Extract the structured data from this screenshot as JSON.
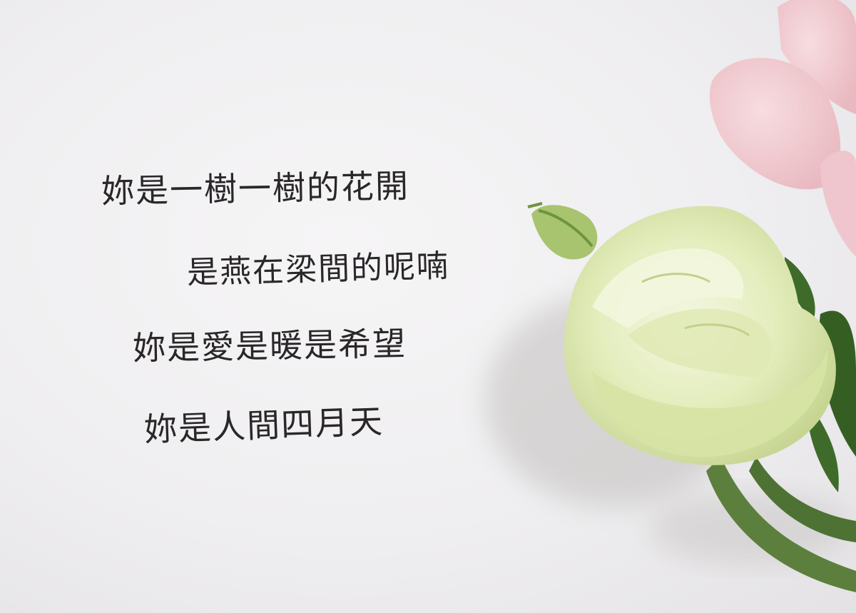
{
  "poem": {
    "lines": [
      "妳是一樹一樹的花開",
      "是燕在梁間的呢喃",
      "妳是愛是暖是希望",
      "妳是人間四月天"
    ]
  },
  "colors": {
    "paper": "#efedee",
    "ink": "#2a2729",
    "rose_petal": "#e6efc4",
    "rose_shadow": "#c9d69a",
    "leaf": "#3f6b2a",
    "pink_petal": "#f0c9cf"
  },
  "objects": {
    "flower": "white-green lisianthus rose",
    "petals": "pink petals"
  }
}
